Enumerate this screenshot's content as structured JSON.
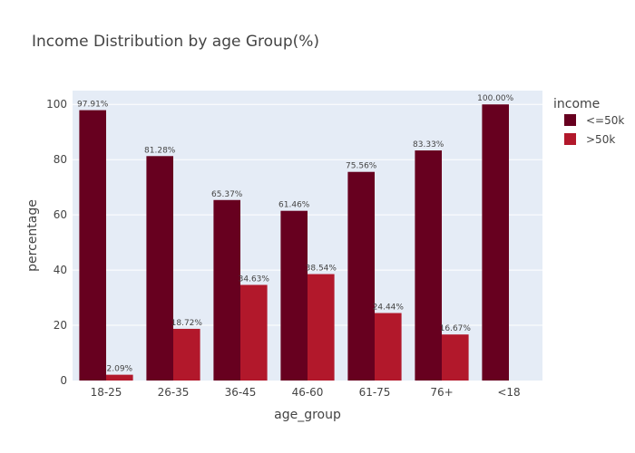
{
  "chart_data": {
    "type": "bar",
    "title": "Income Distribution by age Group(%)",
    "xlabel": "age_group",
    "ylabel": "percentage",
    "categories": [
      "18-25",
      "26-35",
      "36-45",
      "46-60",
      "61-75",
      "76+",
      "<18"
    ],
    "ylim": [
      0,
      105
    ],
    "yticks": [
      0,
      20,
      40,
      60,
      80,
      100
    ],
    "grid": true,
    "legend_title": "income",
    "legend_placement": "top-right",
    "series": [
      {
        "name": "<=50k",
        "color": "#67001f",
        "values": [
          97.91,
          81.28,
          65.37,
          61.46,
          75.56,
          83.33,
          100.0
        ],
        "labels": [
          "97.91%",
          "81.28%",
          "65.37%",
          "61.46%",
          "75.56%",
          "83.33%",
          "100.00%"
        ]
      },
      {
        "name": ">50k",
        "color": "#b2182b",
        "values": [
          2.09,
          18.72,
          34.63,
          38.54,
          24.44,
          16.67,
          null
        ],
        "labels": [
          "2.09%",
          "18.72%",
          "34.63%",
          "38.54%",
          "24.44%",
          "16.67%",
          null
        ]
      }
    ]
  }
}
